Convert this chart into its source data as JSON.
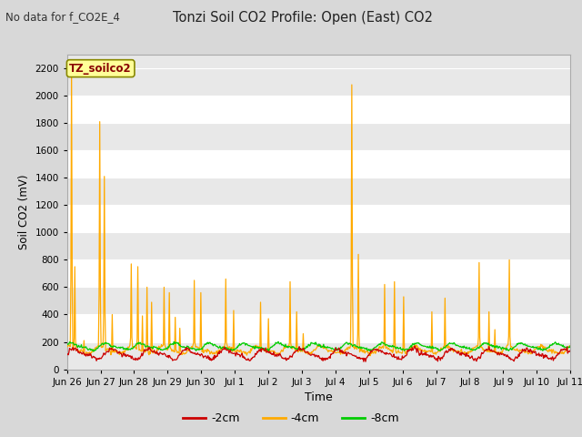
{
  "title": "Tonzi Soil CO2 Profile: Open (East) CO2",
  "subtitle": "No data for f_CO2E_4",
  "ylabel": "Soil CO2 (mV)",
  "xlabel": "Time",
  "legend_label": "TZ_soilco2",
  "series_labels": [
    "-2cm",
    "-4cm",
    "-8cm"
  ],
  "series_colors": [
    "#cc0000",
    "#ffaa00",
    "#00cc00"
  ],
  "ylim": [
    0,
    2300
  ],
  "yticks": [
    0,
    200,
    400,
    600,
    800,
    1000,
    1200,
    1400,
    1600,
    1800,
    2000,
    2200
  ],
  "xtick_labels": [
    "Jun 26",
    "Jun 27",
    "Jun 28",
    "Jun 29",
    "Jun 30",
    "Jul 1",
    "Jul 2",
    "Jul 3",
    "Jul 4",
    "Jul 5",
    "Jul 6",
    "Jul 7",
    "Jul 8",
    "Jul 9",
    "Jul 10",
    "Jul 11"
  ],
  "background_color": "#d8d8d8",
  "plot_bg_color_light": "#e8e8e8",
  "plot_bg_color_dark": "#d4d4d4",
  "grid_color": "#ffffff",
  "spike_data": [
    [
      0.15,
      2200
    ],
    [
      0.25,
      750
    ],
    [
      0.55,
      210
    ],
    [
      1.05,
      1810
    ],
    [
      1.2,
      1410
    ],
    [
      1.45,
      400
    ],
    [
      2.05,
      770
    ],
    [
      2.25,
      750
    ],
    [
      2.4,
      390
    ],
    [
      2.55,
      600
    ],
    [
      2.7,
      490
    ],
    [
      3.1,
      600
    ],
    [
      3.25,
      560
    ],
    [
      3.45,
      380
    ],
    [
      3.6,
      300
    ],
    [
      4.05,
      650
    ],
    [
      4.25,
      560
    ],
    [
      5.05,
      660
    ],
    [
      5.3,
      430
    ],
    [
      6.15,
      490
    ],
    [
      6.4,
      370
    ],
    [
      7.1,
      640
    ],
    [
      7.3,
      420
    ],
    [
      7.5,
      260
    ],
    [
      9.05,
      2080
    ],
    [
      9.25,
      840
    ],
    [
      10.1,
      620
    ],
    [
      10.4,
      640
    ],
    [
      10.7,
      530
    ],
    [
      11.6,
      420
    ],
    [
      12.0,
      520
    ],
    [
      13.1,
      780
    ],
    [
      13.4,
      420
    ],
    [
      13.6,
      290
    ],
    [
      14.05,
      800
    ]
  ]
}
